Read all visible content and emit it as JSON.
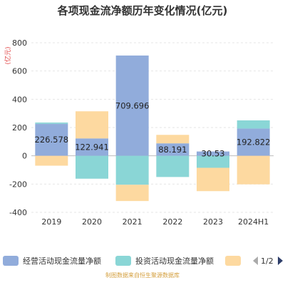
{
  "chart_data": {
    "type": "bar",
    "stacked": true,
    "title": "各项现金流净额历年变化情况(亿元)",
    "ylabel": "(亿元)",
    "categories": [
      "2019",
      "2020",
      "2021",
      "2022",
      "2023",
      "2024H1"
    ],
    "ylim": [
      -400,
      800
    ],
    "yticks": [
      -400,
      -200,
      0,
      200,
      400,
      600,
      800
    ],
    "grid": true,
    "legend_position": "bottom",
    "series": [
      {
        "name": "经营活动现金流量净额",
        "color": "#91acdb",
        "values": [
          226.578,
          122.941,
          709.696,
          88.191,
          30.53,
          192.822
        ]
      },
      {
        "name": "投资活动现金流量净额",
        "color": "#8ad6d6",
        "values": [
          9,
          -162,
          -205,
          -150,
          -85,
          58
        ]
      },
      {
        "name": "",
        "color": "#fdd9a0",
        "values": [
          -70,
          192,
          -115,
          60,
          -165,
          -202
        ]
      }
    ],
    "data_labels": [
      "226.578",
      "122.941",
      "709.696",
      "88.191",
      "30.53",
      "192.822"
    ]
  },
  "legend": {
    "page": "1/2"
  },
  "source_note": "制图数据来自恒生聚源数据库"
}
